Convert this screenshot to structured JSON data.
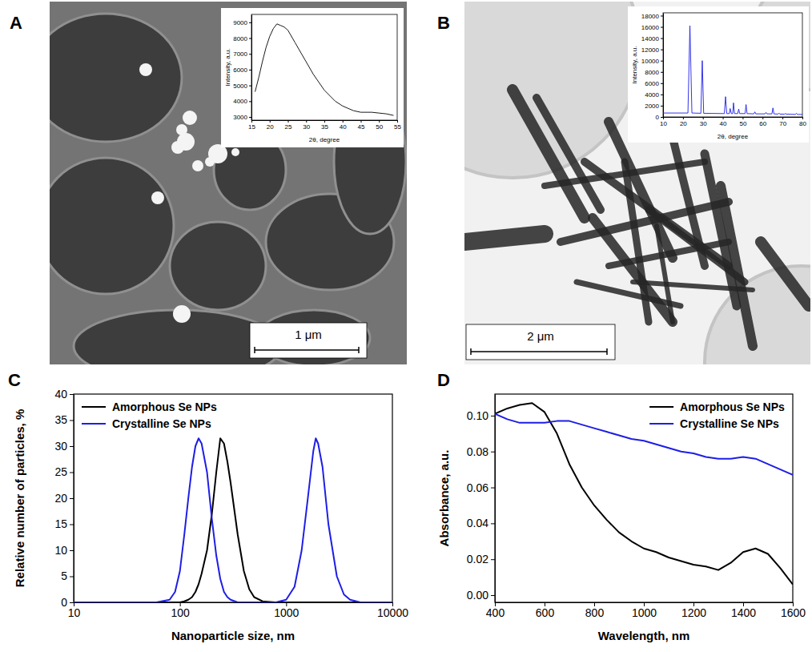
{
  "chart_data": [
    {
      "panel": "A",
      "scale_bar": "1 μm",
      "type": "line",
      "x_label": "2θ, degree",
      "y_label": "Intensity, a.u.",
      "x": [
        16,
        17,
        18,
        19,
        20,
        21,
        22,
        23,
        24,
        25,
        27,
        30,
        32,
        35,
        38,
        40,
        43,
        45,
        48,
        50,
        52,
        54
      ],
      "values": [
        4600,
        5500,
        6500,
        7400,
        8100,
        8600,
        8900,
        8800,
        8700,
        8500,
        7700,
        6500,
        5700,
        4700,
        4000,
        3700,
        3400,
        3300,
        3300,
        3250,
        3200,
        3100
      ],
      "color": "#000000",
      "xlim": [
        15,
        55
      ],
      "xticks": [
        15,
        20,
        25,
        30,
        35,
        40,
        45,
        50,
        55
      ],
      "ylim": [
        2800,
        9500
      ],
      "yticks": [
        3000,
        4000,
        5000,
        6000,
        7000,
        8000,
        9000
      ],
      "grid": false
    },
    {
      "panel": "B",
      "scale_bar": "2 μm",
      "type": "line",
      "x_label": "2θ, degree",
      "y_label": "Intensity, a.u.",
      "x": [
        10,
        22.5,
        23.5,
        24.5,
        29,
        29.7,
        30.4,
        40.8,
        41.4,
        42,
        43.3,
        43.7,
        44.3,
        45,
        45.4,
        45.9,
        47.5,
        48,
        48.5,
        51.2,
        51.7,
        52.2,
        55.6,
        56.1,
        56.6,
        61.2,
        61.7,
        62.2,
        64.7,
        65.2,
        65.7,
        67.7,
        68.2,
        68.7,
        71,
        71.5,
        72,
        76.5,
        77,
        77.5,
        80
      ],
      "values": [
        700,
        700,
        16200,
        700,
        650,
        10000,
        650,
        600,
        3600,
        600,
        600,
        1500,
        600,
        600,
        2500,
        600,
        600,
        1400,
        600,
        600,
        2200,
        600,
        550,
        900,
        550,
        550,
        800,
        550,
        550,
        1600,
        550,
        500,
        700,
        500,
        500,
        600,
        500,
        450,
        650,
        450,
        450
      ],
      "color": "#1e1ee6",
      "xlim": [
        10,
        80
      ],
      "xticks": [
        10,
        20,
        30,
        40,
        50,
        60,
        70,
        80
      ],
      "ylim": [
        0,
        18500
      ],
      "yticks": [
        0,
        2000,
        4000,
        6000,
        8000,
        10000,
        12000,
        14000,
        16000,
        18000
      ],
      "grid": false
    },
    {
      "panel": "C",
      "type": "line",
      "log": "x",
      "x_label": "Nanoparticle size, nm",
      "y_label": "Relative number of particles, %",
      "x": [
        10,
        60,
        80,
        90,
        100,
        110,
        120,
        130,
        140,
        150,
        160,
        180,
        200,
        220,
        240,
        260,
        280,
        300,
        350,
        400,
        450,
        500,
        600,
        800,
        1000,
        1200,
        1400,
        1600,
        1800,
        1900,
        2000,
        2200,
        2500,
        3000,
        3500,
        4000,
        5000,
        10000
      ],
      "series": [
        {
          "name": "Amorphous Se NPs",
          "color": "#000000",
          "values": [
            0,
            0,
            0,
            0,
            0,
            0.2,
            0.5,
            1,
            2,
            3.5,
            5.5,
            10,
            17,
            25,
            31.5,
            30.5,
            27,
            23,
            13,
            6,
            2.5,
            1,
            0.2,
            0,
            0,
            0,
            0,
            0,
            0,
            0,
            0,
            0,
            0,
            0,
            0,
            0,
            0,
            0
          ]
        },
        {
          "name": "Crystalline Se NPs",
          "color": "#1e1ee6",
          "values": [
            0,
            0,
            0.5,
            2,
            6,
            13,
            20,
            26,
            30,
            31.5,
            30.5,
            25,
            16,
            9,
            4.5,
            2,
            1,
            0.5,
            0,
            0,
            0,
            0,
            0,
            0,
            0.5,
            3,
            10,
            20,
            29,
            31.5,
            30.5,
            26,
            15,
            5,
            1.5,
            0.5,
            0,
            0
          ]
        }
      ],
      "xlim": [
        10,
        10000
      ],
      "xticks": [
        10,
        100,
        1000,
        10000
      ],
      "ylim": [
        0,
        40
      ],
      "yticks": [
        0,
        5,
        10,
        15,
        20,
        25,
        30,
        35,
        40
      ],
      "legend": "upper left",
      "grid": false
    },
    {
      "panel": "D",
      "type": "line",
      "x_label": "Wavelength, nm",
      "y_label": "Absorbance, a.u.",
      "x": [
        400,
        450,
        500,
        550,
        600,
        650,
        700,
        750,
        800,
        850,
        900,
        950,
        1000,
        1050,
        1100,
        1150,
        1200,
        1250,
        1300,
        1350,
        1400,
        1450,
        1500,
        1550,
        1600
      ],
      "series": [
        {
          "name": "Amorphous Se NPs",
          "color": "#000000",
          "values": [
            0.101,
            0.104,
            0.106,
            0.107,
            0.102,
            0.09,
            0.073,
            0.06,
            0.05,
            0.042,
            0.035,
            0.03,
            0.026,
            0.024,
            0.021,
            0.019,
            0.017,
            0.016,
            0.014,
            0.018,
            0.024,
            0.026,
            0.023,
            0.015,
            0.006
          ]
        },
        {
          "name": "Crystalline Se NPs",
          "color": "#1e1ee6",
          "values": [
            0.101,
            0.098,
            0.096,
            0.096,
            0.096,
            0.097,
            0.097,
            0.095,
            0.093,
            0.091,
            0.089,
            0.087,
            0.086,
            0.084,
            0.082,
            0.08,
            0.079,
            0.077,
            0.076,
            0.076,
            0.077,
            0.076,
            0.073,
            0.07,
            0.067
          ]
        }
      ],
      "xlim": [
        400,
        1600
      ],
      "xticks": [
        400,
        600,
        800,
        1000,
        1200,
        1400,
        1600
      ],
      "ylim": [
        -0.004,
        0.112
      ],
      "yticks": [
        {
          "value": 0,
          "label": "0.00"
        },
        {
          "value": 0.02,
          "label": "0.02"
        },
        {
          "value": 0.04,
          "label": "0.04"
        },
        {
          "value": 0.06,
          "label": "0.06"
        },
        {
          "value": 0.08,
          "label": "0.08"
        },
        {
          "value": 0.1,
          "label": "0.10"
        }
      ],
      "legend": "upper right",
      "grid": false
    }
  ]
}
